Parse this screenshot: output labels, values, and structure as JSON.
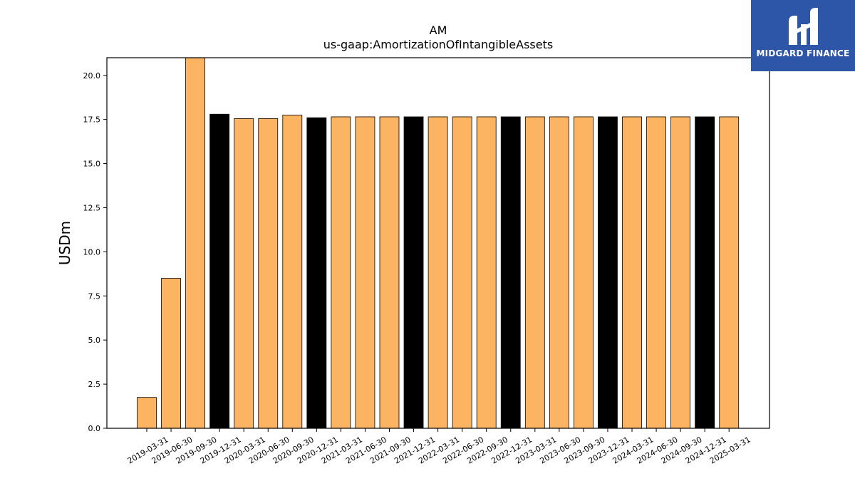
{
  "chart_data": {
    "type": "bar",
    "title": "AM",
    "subtitle": "us-gaap:AmortizationOfIntangibleAssets",
    "xlabel": "",
    "ylabel": "USDm",
    "ylim": [
      0,
      21
    ],
    "yticks": [
      "0.0",
      "2.5",
      "5.0",
      "7.5",
      "10.0",
      "12.5",
      "15.0",
      "17.5",
      "20.0"
    ],
    "categories": [
      "2019-03-31",
      "2019-06-30",
      "2019-09-30",
      "2019-12-31",
      "2020-03-31",
      "2020-06-30",
      "2020-09-30",
      "2020-12-31",
      "2021-03-31",
      "2021-06-30",
      "2021-09-30",
      "2021-12-31",
      "2022-03-31",
      "2022-06-30",
      "2022-09-30",
      "2022-12-31",
      "2023-03-31",
      "2023-06-30",
      "2023-09-30",
      "2023-12-31",
      "2024-03-31",
      "2024-06-30",
      "2024-09-30",
      "2024-12-31",
      "2025-03-31"
    ],
    "values": [
      1.75,
      8.5,
      21.0,
      17.8,
      17.55,
      17.55,
      17.75,
      17.6,
      17.65,
      17.65,
      17.65,
      17.65,
      17.65,
      17.65,
      17.65,
      17.65,
      17.65,
      17.65,
      17.65,
      17.65,
      17.65,
      17.65,
      17.65,
      17.65,
      17.65
    ],
    "highlight": [
      false,
      false,
      false,
      true,
      false,
      false,
      false,
      true,
      false,
      false,
      false,
      true,
      false,
      false,
      false,
      true,
      false,
      false,
      false,
      true,
      false,
      false,
      false,
      true,
      false
    ],
    "colors": {
      "bar": "#fdb462",
      "highlight": "#000000",
      "edge": "#000000"
    },
    "grid": false,
    "legend": "none"
  },
  "logo": {
    "text": "MIDGARD FINANCE",
    "color": "#2d56a8"
  }
}
